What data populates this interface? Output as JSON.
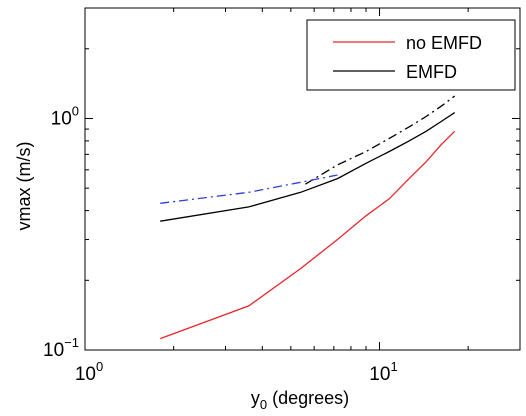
{
  "chart_data": {
    "type": "line",
    "x_scale": "log",
    "y_scale": "log",
    "xlabel_main": "y",
    "xlabel_sub": "0",
    "xlabel_rest": " (degrees)",
    "ylabel": "vmax (m/s)",
    "xlim": [
      1,
      30
    ],
    "ylim": [
      0.1,
      3
    ],
    "grid": false,
    "legend_position": "top-right",
    "x_ticks": [
      {
        "value": 1,
        "base": "10",
        "exp": "0"
      },
      {
        "value": 10,
        "base": "10",
        "exp": "1"
      }
    ],
    "y_ticks": [
      {
        "value": 0.1,
        "base": "10",
        "exp": "−1"
      },
      {
        "value": 1,
        "base": "10",
        "exp": "0"
      }
    ],
    "series": [
      {
        "name": "no EMFD",
        "color": "#e8262b",
        "dash": "solid",
        "in_legend": true,
        "x": [
          1.8,
          3.6,
          5.4,
          7.2,
          9.0,
          10.8,
          12.6,
          14.4,
          16.2,
          18.0
        ],
        "y": [
          0.112,
          0.155,
          0.225,
          0.3,
          0.38,
          0.45,
          0.55,
          0.65,
          0.77,
          0.88
        ]
      },
      {
        "name": "EMFD",
        "color": "#000000",
        "dash": "solid",
        "in_legend": true,
        "x": [
          1.8,
          3.6,
          5.4,
          7.2,
          9.0,
          10.8,
          12.6,
          14.4,
          16.2,
          18.0
        ],
        "y": [
          0.36,
          0.415,
          0.48,
          0.55,
          0.64,
          0.72,
          0.8,
          0.88,
          0.97,
          1.06
        ]
      },
      {
        "color": "#000000",
        "dash": "dashdot",
        "in_legend": false,
        "x": [
          5.6,
          7.2,
          9.0,
          10.8,
          12.6,
          14.4,
          16.2,
          18.0
        ],
        "y": [
          0.52,
          0.63,
          0.72,
          0.82,
          0.92,
          1.02,
          1.13,
          1.25
        ]
      },
      {
        "color": "#2f3fd8",
        "dash": "dashdot",
        "in_legend": false,
        "x": [
          1.8,
          3.6,
          5.4,
          7.2
        ],
        "y": [
          0.43,
          0.48,
          0.53,
          0.57
        ]
      }
    ]
  }
}
